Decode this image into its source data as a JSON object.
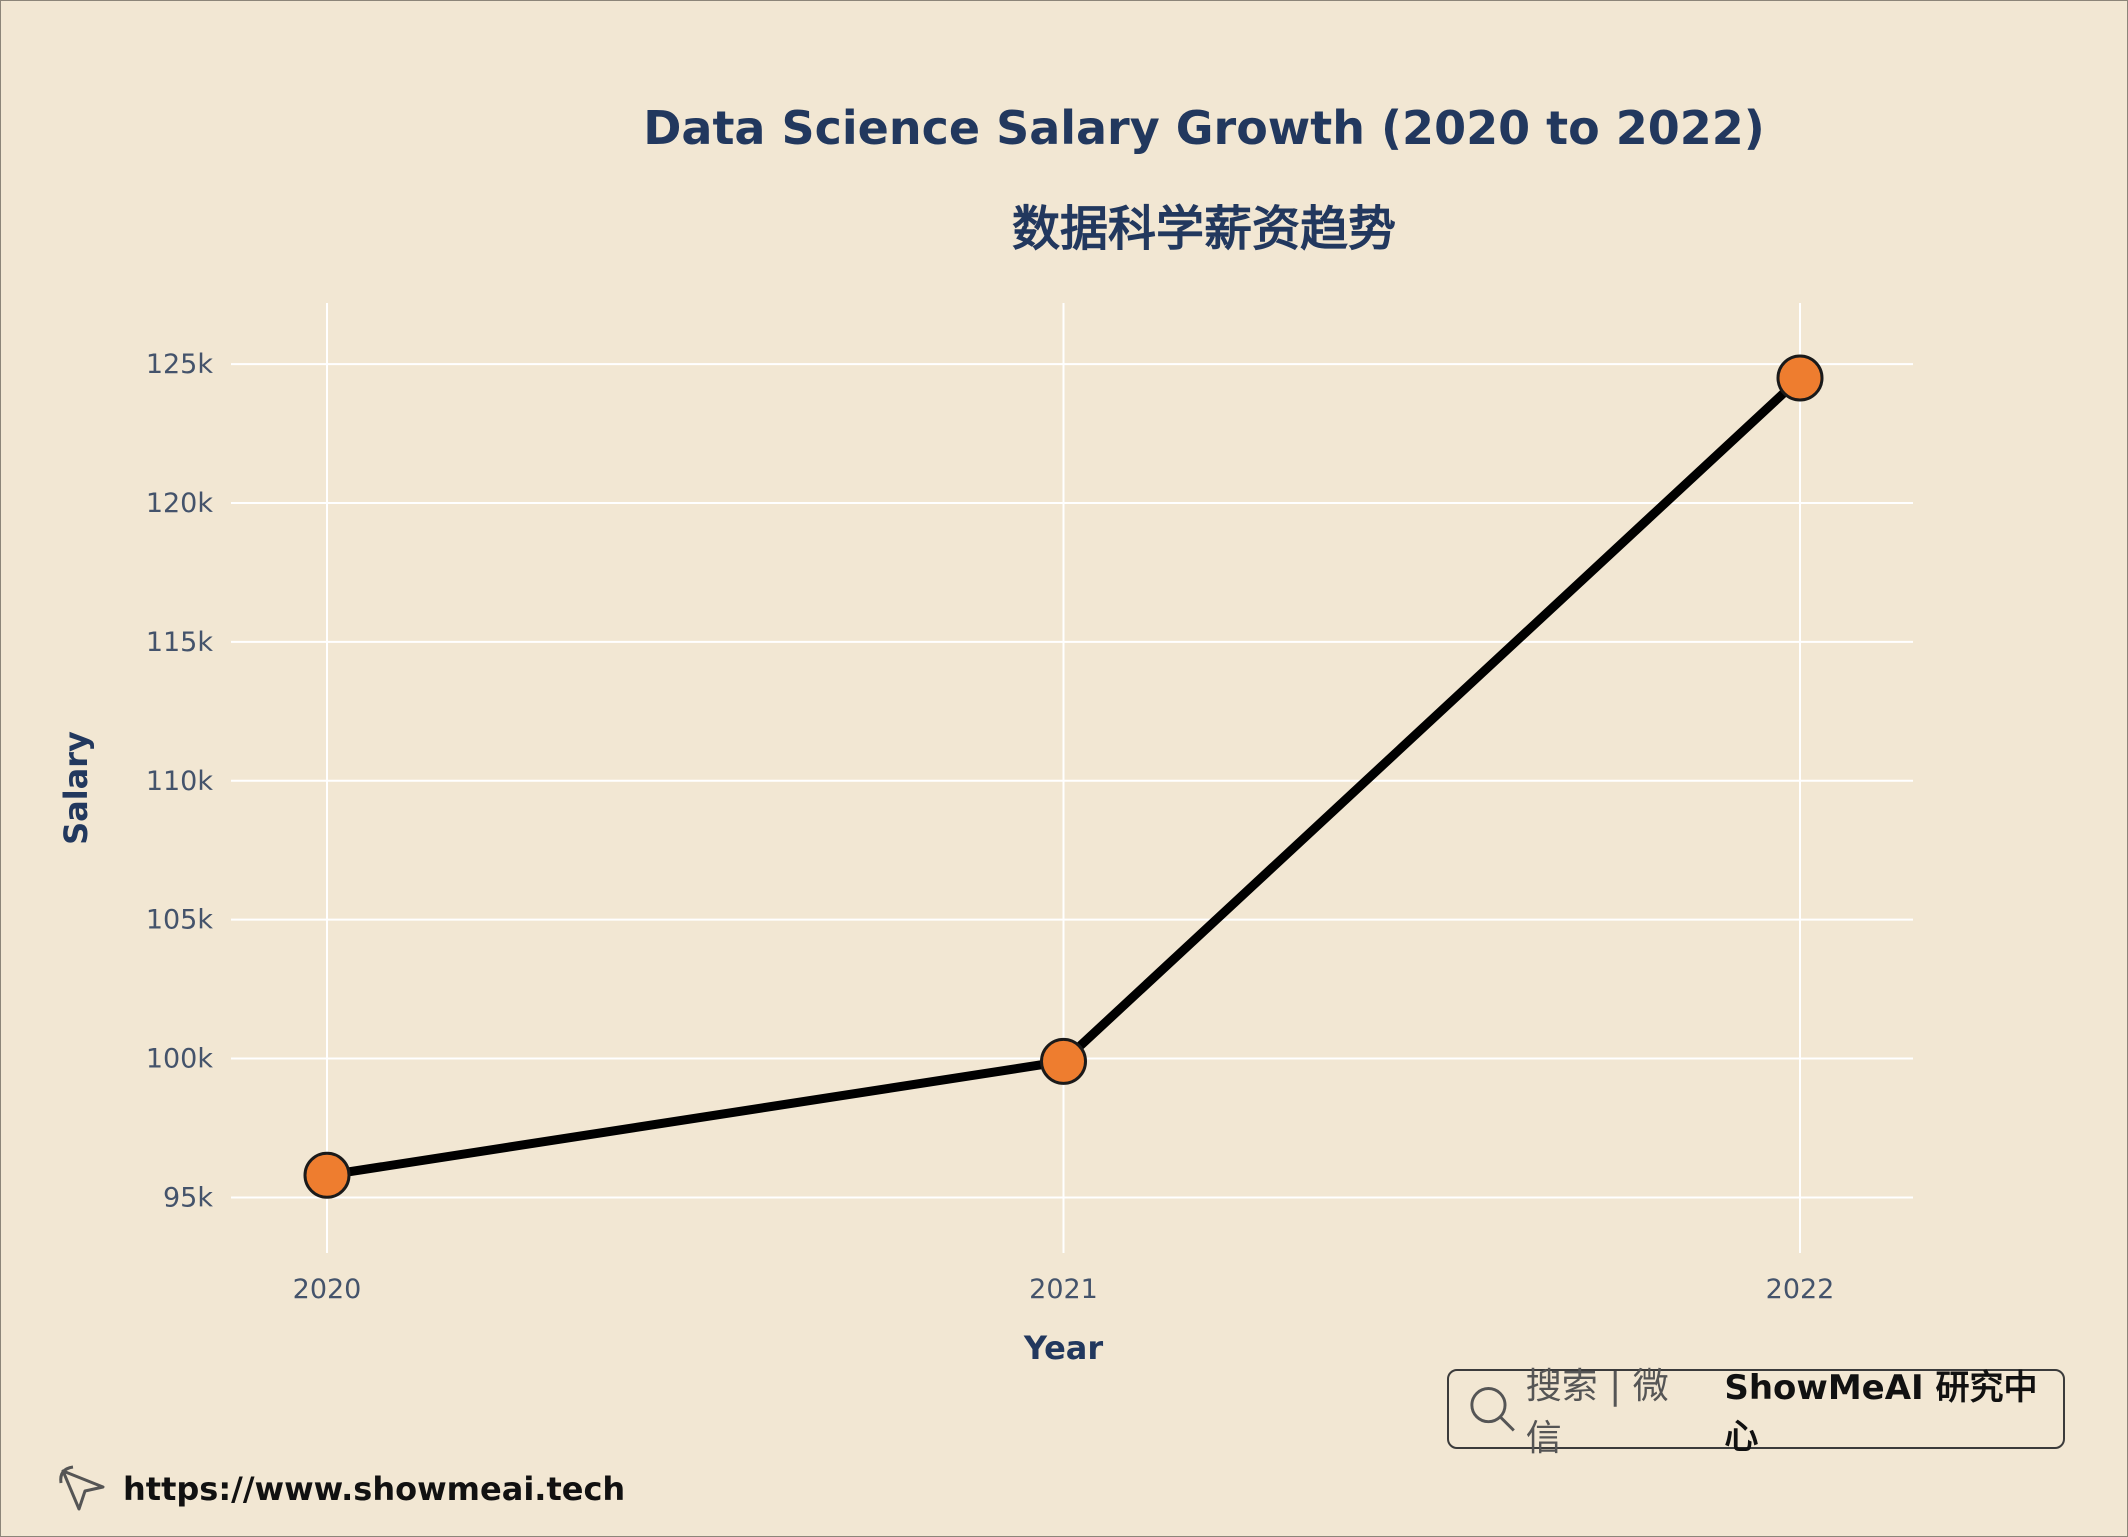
{
  "header": {
    "title": "Data Science Salary Growth (2020 to 2022)",
    "subtitle": "数据科学薪资趋势"
  },
  "chart_data": {
    "type": "line",
    "x": [
      2020,
      2021,
      2022
    ],
    "series": [
      {
        "values": [
          95800,
          99900,
          124500
        ]
      }
    ],
    "xlabel": "Year",
    "ylabel": "Salary",
    "xticks": [
      "2020",
      "2021",
      "2022"
    ],
    "yticks": [
      "95k",
      "100k",
      "105k",
      "110k",
      "115k",
      "120k",
      "125k"
    ],
    "ytick_values": [
      95000,
      100000,
      105000,
      110000,
      115000,
      120000,
      125000
    ],
    "ylim": [
      93000,
      127200
    ],
    "grid": true,
    "line_color": "#000000",
    "marker_color": "#ee7d2f",
    "background_color": "#f2e7d3",
    "grid_color": "#ffffff"
  },
  "badge": {
    "left_text": "搜索 | 微信",
    "right_text": "ShowMeAI 研究中心"
  },
  "footer": {
    "url": "https://www.showmeai.tech"
  }
}
